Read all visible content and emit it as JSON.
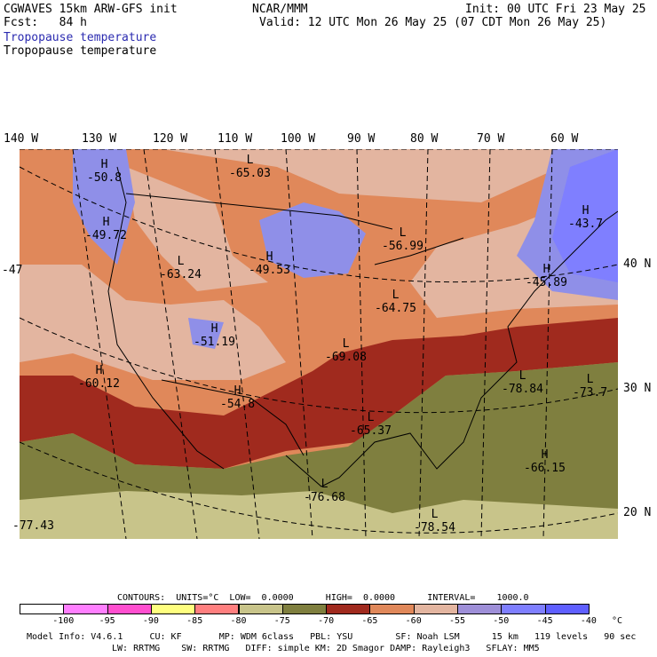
{
  "header": {
    "model": "CGWAVES 15km ARW-GFS init",
    "org": "NCAR/MMM",
    "init": "Init: 00 UTC Fri 23 May 25",
    "fcst": "Fcst:   84 h",
    "valid": "Valid: 12 UTC Mon 26 May 25 (07 CDT Mon 26 May 25)",
    "field_title_blue": "Tropopause temperature",
    "field_title_black": "Tropopause temperature"
  },
  "axes": {
    "lon_labels": [
      "140 W",
      "130 W",
      "120 W",
      "110 W",
      "100 W",
      "90 W",
      "80 W",
      "70 W",
      "60 W"
    ],
    "lat_labels": [
      "40 N",
      "30 N",
      "20 N"
    ]
  },
  "map_labels": [
    {
      "letter": "H",
      "value": "-50.8"
    },
    {
      "letter": "L",
      "value": "-65.03"
    },
    {
      "letter": "H",
      "value": "-49.72"
    },
    {
      "letter": "",
      "value": "-47"
    },
    {
      "letter": "L",
      "value": "-63.24"
    },
    {
      "letter": "H",
      "value": "-49.53"
    },
    {
      "letter": "L",
      "value": "-56.99"
    },
    {
      "letter": "H",
      "value": "-43.7"
    },
    {
      "letter": "H",
      "value": "-45.89"
    },
    {
      "letter": "L",
      "value": "-64.75"
    },
    {
      "letter": "H",
      "value": "-51.19"
    },
    {
      "letter": "L",
      "value": "-69.08"
    },
    {
      "letter": "H",
      "value": "-60.12"
    },
    {
      "letter": "H",
      "value": "-54.8"
    },
    {
      "letter": "L",
      "value": "-78.84"
    },
    {
      "letter": "L",
      "value": "-73.7"
    },
    {
      "letter": "L",
      "value": "-65.37"
    },
    {
      "letter": "H",
      "value": "-66.15"
    },
    {
      "letter": "L",
      "value": "-76.68"
    },
    {
      "letter": "L",
      "value": "-78.54"
    },
    {
      "letter": "",
      "value": "-77.43"
    }
  ],
  "contours": {
    "text": "CONTOURS:  UNITS=°C  LOW=  0.0000      HIGH=  0.0000      INTERVAL=    1000.0"
  },
  "colorbar": {
    "colors": [
      "#ffffff",
      "#ff7fff",
      "#ff4fcf",
      "#ffff7f",
      "#ff7f7f",
      "#c8c48a",
      "#7f7f3f",
      "#a02a1e",
      "#e0885a",
      "#e3b5a0",
      "#9e8fd8",
      "#7f7fff",
      "#5f5fff"
    ],
    "labels": [
      "-100",
      "-95",
      "-90",
      "-85",
      "-80",
      "-75",
      "-70",
      "-65",
      "-60",
      "-55",
      "-50",
      "-45",
      "-40"
    ],
    "unit": "°C"
  },
  "footer": {
    "line1": "Model Info: V4.6.1     CU: KF       MP: WDM 6class   PBL: YSU        SF: Noah LSM      15 km   119 levels   90 sec",
    "line2": "LW: RRTMG    SW: RRTMG   DIFF: simple KM: 2D Smagor DAMP: Rayleigh3   SFLAY: MM5"
  }
}
